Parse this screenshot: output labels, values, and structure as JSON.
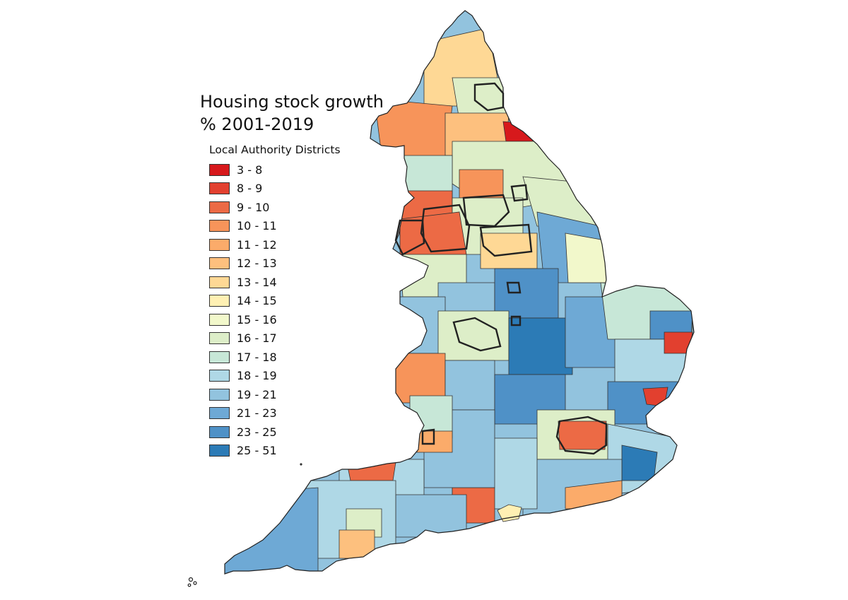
{
  "map": {
    "title_line1": "Housing stock growth",
    "title_line2": "% 2001-2019",
    "legend_heading": "Local Authority Districts",
    "classes": [
      {
        "label": "3 - 8",
        "color": "#d7191c"
      },
      {
        "label": "8 - 9",
        "color": "#e2402f"
      },
      {
        "label": "9 - 10",
        "color": "#ec6a45"
      },
      {
        "label": "10 - 11",
        "color": "#f7945a"
      },
      {
        "label": "11 - 12",
        "color": "#fbab6a"
      },
      {
        "label": "12 - 13",
        "color": "#fdc07e"
      },
      {
        "label": "13 - 14",
        "color": "#fed895"
      },
      {
        "label": "14 - 15",
        "color": "#fff0b3"
      },
      {
        "label": "15 - 16",
        "color": "#f2f8cb"
      },
      {
        "label": "16 - 17",
        "color": "#ddeec8"
      },
      {
        "label": "17 - 18",
        "color": "#c7e7d7"
      },
      {
        "label": "18 - 19",
        "color": "#afd8e6"
      },
      {
        "label": "19 - 21",
        "color": "#92c3de"
      },
      {
        "label": "21 - 23",
        "color": "#6ea9d5"
      },
      {
        "label": "23 - 25",
        "color": "#4f91c7"
      },
      {
        "label": "25 - 51",
        "color": "#2c7bb6"
      }
    ]
  }
}
